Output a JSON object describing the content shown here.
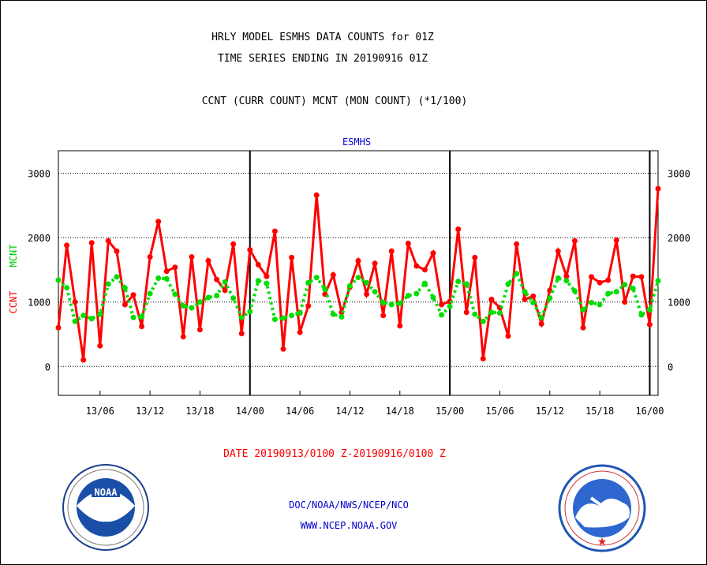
{
  "header": {
    "title_line1": "HRLY MODEL ESMHS DATA COUNTS for 01Z",
    "title_line2": "TIME SERIES ENDING IN 20190916 01Z",
    "title_line3": "CCNT (CURR COUNT) MCNT (MON COUNT) (*1/100)"
  },
  "footer": {
    "date_range": "DATE 20190913/0100 Z-20190916/0100 Z",
    "org": "DOC/NOAA/NWS/NCEP/NCO",
    "url": "WWW.NCEP.NOAA.GOV"
  },
  "colors": {
    "ccnt": "#ff0000",
    "mcnt": "#00dd00",
    "blue_text": "#0000cc"
  },
  "icons": {
    "left_logo": "noaa-logo-icon",
    "right_logo": "national-weather-service-logo-icon"
  },
  "chart_data": {
    "type": "line",
    "title": "ESMHS",
    "ylabel_ccnt": "CCNT",
    "ylabel_mcnt": "MCNT",
    "ylim": [
      -450,
      3350
    ],
    "y_ticks": [
      0,
      1000,
      2000,
      3000
    ],
    "y_tick_labels": [
      "0",
      "1000",
      "2000",
      "3000"
    ],
    "x_ticks": [
      "13/06",
      "13/12",
      "13/18",
      "14/00",
      "14/06",
      "14/12",
      "14/18",
      "15/00",
      "15/06",
      "15/12",
      "15/18",
      "16/00"
    ],
    "day_boundaries": [
      "14/00",
      "15/00",
      "16/00"
    ],
    "grid": true,
    "series": [
      {
        "name": "CCNT",
        "values": [
          600,
          1880,
          1000,
          100,
          1920,
          320,
          1950,
          1790,
          960,
          1110,
          620,
          1700,
          2250,
          1480,
          1540,
          460,
          1700,
          570,
          1640,
          1350,
          1180,
          1900,
          510,
          1810,
          1580,
          1400,
          2100,
          270,
          1690,
          530,
          940,
          2660,
          1120,
          1420,
          840,
          1230,
          1640,
          1120,
          1600,
          790,
          1790,
          630,
          1910,
          1560,
          1500,
          1760,
          960,
          1010,
          2130,
          840,
          1690,
          120,
          1040,
          910,
          470,
          1900,
          1040,
          1090,
          660,
          1180,
          1790,
          1400,
          1950,
          600,
          1390,
          1300,
          1340,
          1960,
          1000,
          1400,
          1390,
          650,
          2760
        ]
      },
      {
        "name": "MCNT",
        "values": [
          1340,
          1220,
          700,
          790,
          740,
          810,
          1280,
          1390,
          1220,
          760,
          770,
          1130,
          1370,
          1360,
          1120,
          940,
          910,
          1000,
          1070,
          1100,
          1310,
          1060,
          760,
          850,
          1330,
          1290,
          730,
          750,
          790,
          830,
          1300,
          1380,
          1200,
          810,
          770,
          1250,
          1380,
          1300,
          1160,
          990,
          960,
          980,
          1100,
          1130,
          1290,
          1070,
          800,
          930,
          1320,
          1280,
          810,
          700,
          840,
          830,
          1280,
          1440,
          1160,
          990,
          760,
          1060,
          1370,
          1330,
          1170,
          880,
          990,
          960,
          1130,
          1160,
          1270,
          1210,
          800,
          880,
          1330
        ]
      }
    ]
  }
}
